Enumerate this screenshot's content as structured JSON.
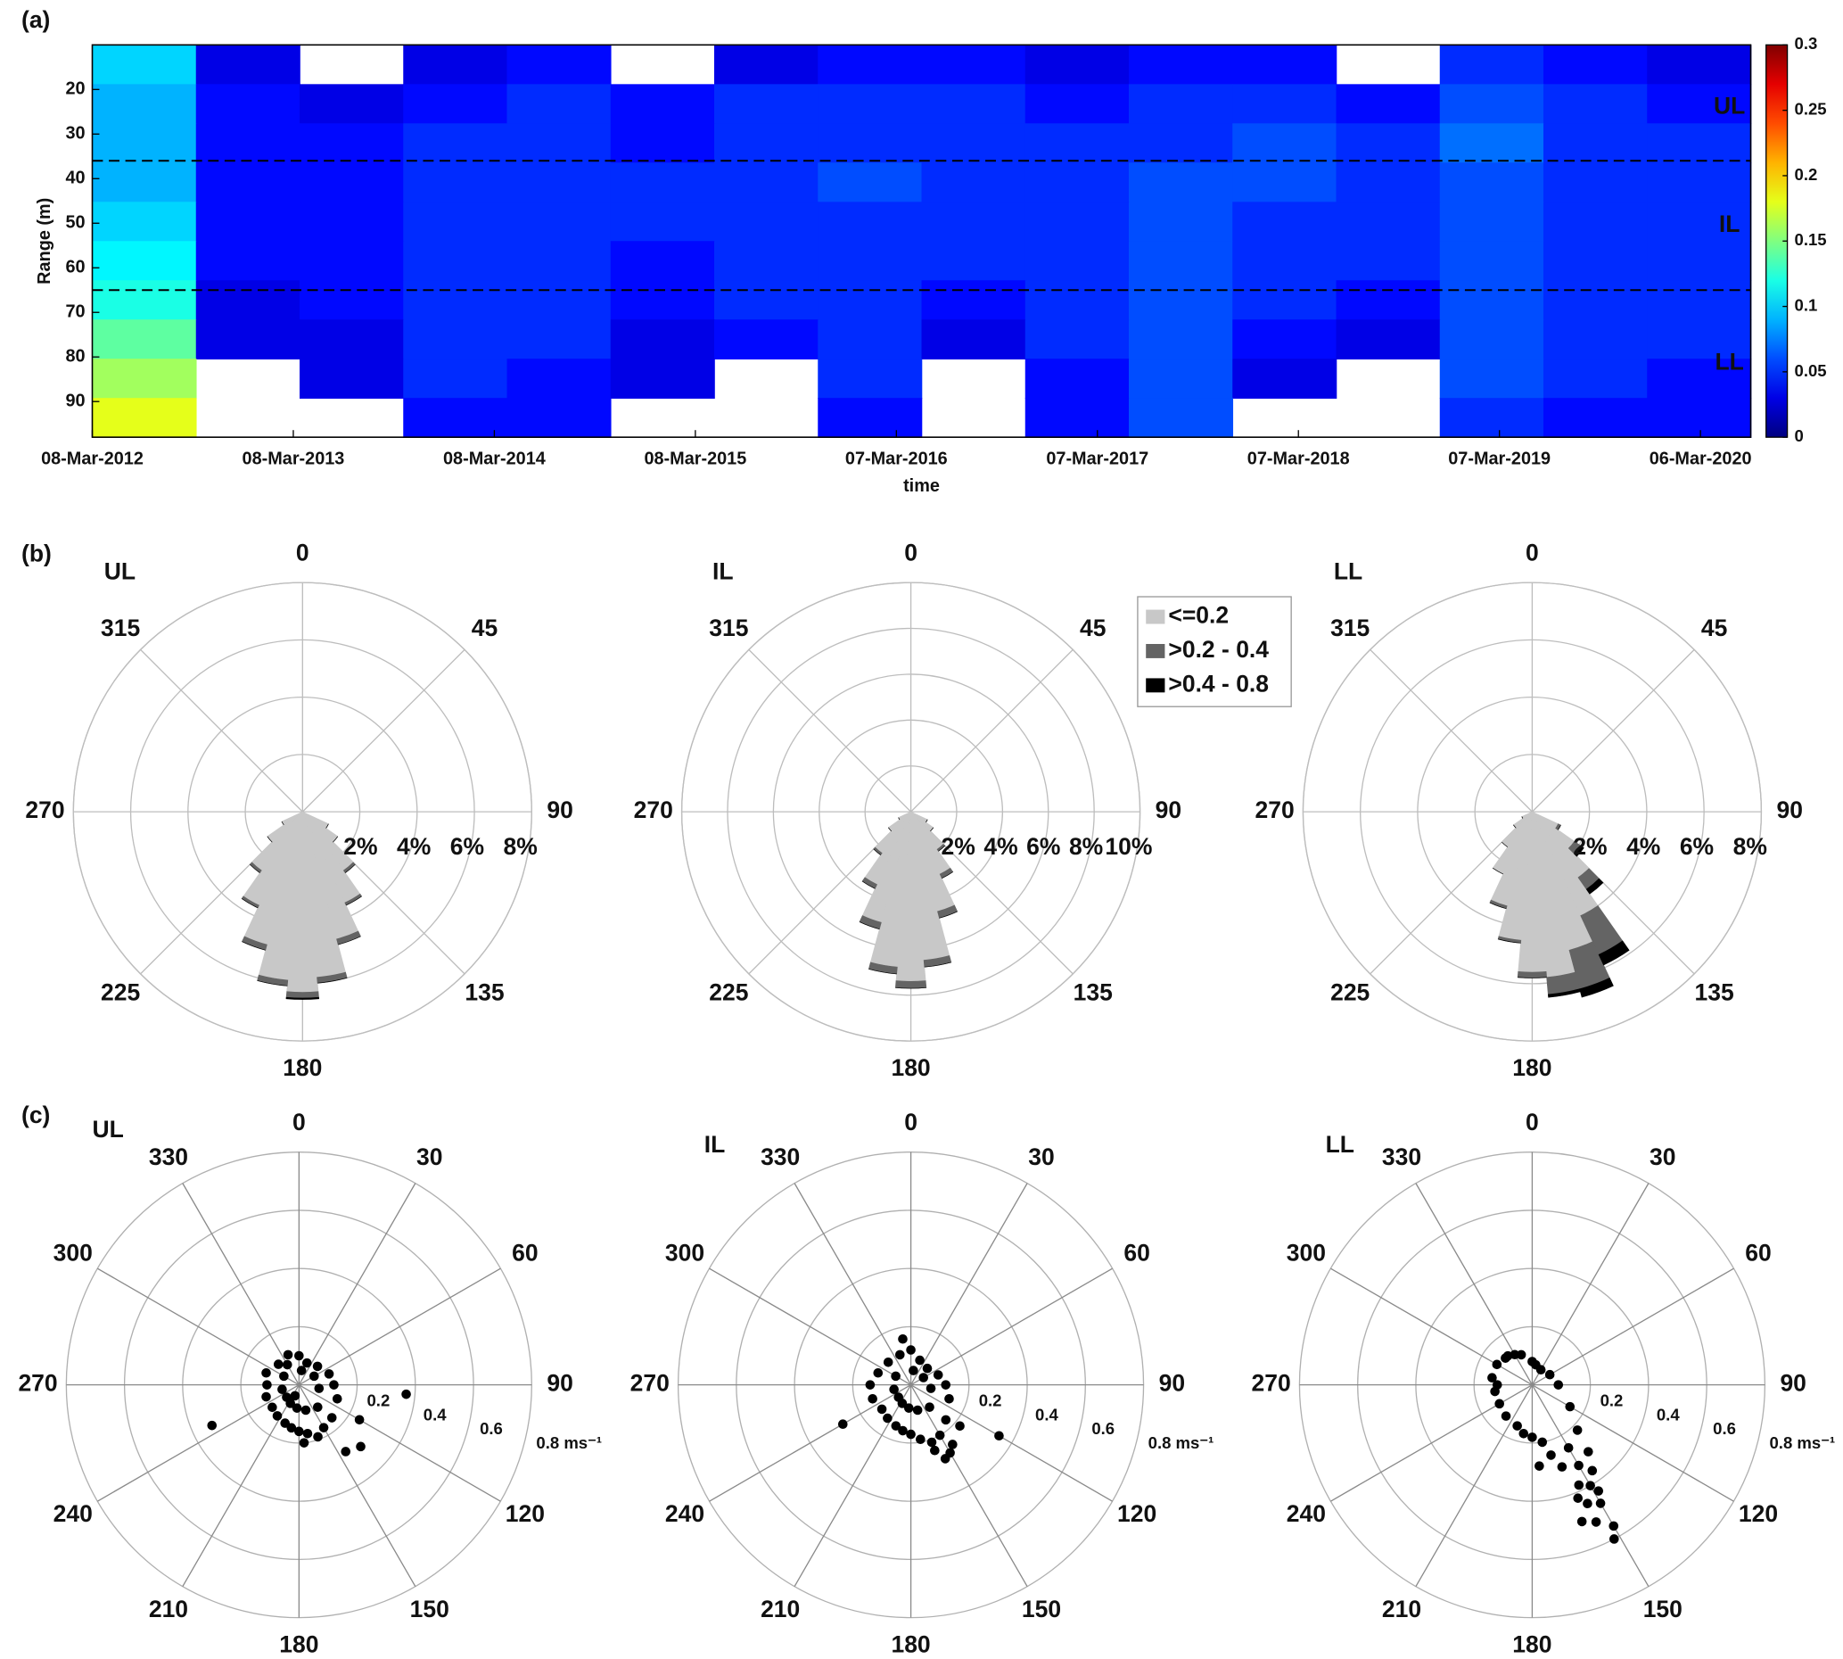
{
  "chart_data": [
    {
      "type": "heatmap",
      "panel": "(a)",
      "ylabel": "Range (m)",
      "xlabel": "time",
      "xlim": [
        2012.18,
        2020.43
      ],
      "ylim": [
        10,
        98
      ],
      "y_reversed": true,
      "xticks": [
        {
          "value": 2012.18,
          "label": "08-Mar-2012"
        },
        {
          "value": 2013.18,
          "label": "08-Mar-2013"
        },
        {
          "value": 2014.18,
          "label": "08-Mar-2014"
        },
        {
          "value": 2015.18,
          "label": "08-Mar-2015"
        },
        {
          "value": 2016.18,
          "label": "07-Mar-2016"
        },
        {
          "value": 2017.18,
          "label": "07-Mar-2017"
        },
        {
          "value": 2018.18,
          "label": "07-Mar-2018"
        },
        {
          "value": 2019.18,
          "label": "07-Mar-2019"
        },
        {
          "value": 2020.18,
          "label": "06-Mar-2020"
        }
      ],
      "yticks": [
        20,
        30,
        40,
        50,
        60,
        70,
        80,
        90
      ],
      "colormap": "jet",
      "clim": [
        0,
        0.3
      ],
      "cticks": [
        0,
        0.05,
        0.1,
        0.15,
        0.2,
        0.25,
        0.3
      ],
      "boundaries": [
        36,
        65
      ],
      "layer_labels": [
        "UL",
        "IL",
        "LL"
      ],
      "values": [
        [
          0.1,
          0.03,
          null,
          0.03,
          0.04,
          null,
          0.03,
          0.04,
          0.04,
          0.03,
          0.04,
          0.04,
          null,
          0.05,
          0.04,
          0.03
        ],
        [
          0.09,
          0.04,
          0.03,
          0.04,
          0.05,
          0.04,
          0.05,
          0.05,
          0.05,
          0.04,
          0.05,
          0.05,
          0.04,
          0.06,
          0.05,
          0.04
        ],
        [
          0.09,
          0.04,
          0.04,
          0.05,
          0.05,
          0.04,
          0.05,
          0.05,
          0.05,
          0.05,
          0.05,
          0.06,
          0.05,
          0.07,
          0.05,
          0.05
        ],
        [
          0.09,
          0.04,
          0.04,
          0.05,
          0.05,
          0.05,
          0.05,
          0.06,
          0.05,
          0.05,
          0.06,
          0.06,
          0.05,
          0.06,
          0.05,
          0.05
        ],
        [
          0.1,
          0.04,
          0.04,
          0.05,
          0.05,
          0.05,
          0.05,
          0.05,
          0.05,
          0.05,
          0.06,
          0.05,
          0.05,
          0.06,
          0.05,
          0.05
        ],
        [
          0.11,
          0.04,
          0.04,
          0.05,
          0.05,
          0.04,
          0.05,
          0.05,
          0.05,
          0.05,
          0.06,
          0.05,
          0.05,
          0.06,
          0.05,
          0.05
        ],
        [
          0.12,
          0.03,
          0.04,
          0.05,
          0.05,
          0.04,
          0.05,
          0.05,
          0.04,
          0.05,
          0.06,
          0.05,
          0.04,
          0.06,
          0.05,
          0.05
        ],
        [
          0.14,
          0.03,
          0.03,
          0.05,
          0.05,
          0.03,
          0.04,
          0.05,
          0.03,
          0.05,
          0.06,
          0.04,
          0.03,
          0.06,
          0.05,
          0.05
        ],
        [
          0.16,
          null,
          0.03,
          0.05,
          0.04,
          0.03,
          null,
          0.05,
          null,
          0.04,
          0.06,
          0.03,
          null,
          0.06,
          0.05,
          0.04
        ],
        [
          0.18,
          null,
          null,
          0.04,
          0.04,
          null,
          null,
          0.04,
          null,
          0.04,
          0.06,
          null,
          null,
          0.05,
          0.04,
          0.04
        ]
      ]
    },
    {
      "type": "rose",
      "panel": "(b)",
      "title": "UL",
      "rlim": [
        0,
        8
      ],
      "rticks": [
        {
          "value": 2,
          "label": "2%"
        },
        {
          "value": 4,
          "label": "4%"
        },
        {
          "value": 6,
          "label": "6%"
        },
        {
          "value": 8,
          "label": "8%"
        }
      ],
      "theta_ticks": [
        0,
        45,
        90,
        135,
        180,
        225,
        270,
        315
      ],
      "x": [
        120,
        130,
        140,
        150,
        160,
        170,
        180,
        190,
        200,
        210,
        220,
        230,
        240
      ],
      "series": [
        {
          "color": "#c8c8c8",
          "values": [
            1.0,
            1.5,
            2.5,
            3.5,
            4.6,
            5.8,
            6.3,
            5.9,
            4.8,
            3.6,
            2.5,
            1.5,
            0.8
          ]
        },
        {
          "color": "#646464",
          "values": [
            0,
            0,
            0.1,
            0.1,
            0.2,
            0.2,
            0.2,
            0.2,
            0.2,
            0.1,
            0.1,
            0,
            0
          ]
        },
        {
          "color": "#000000",
          "values": [
            0,
            0,
            0,
            0,
            0,
            0,
            0.05,
            0,
            0,
            0,
            0,
            0,
            0
          ]
        }
      ]
    },
    {
      "type": "rose",
      "title": "IL",
      "rlim": [
        0,
        10
      ],
      "rticks": [
        {
          "value": 2,
          "label": "2%"
        },
        {
          "value": 4,
          "label": "4%"
        },
        {
          "value": 6,
          "label": "6%"
        },
        {
          "value": 8,
          "label": "8%"
        },
        {
          "value": 10,
          "label": "10%"
        }
      ],
      "theta_ticks": [
        0,
        45,
        90,
        135,
        180,
        225,
        270,
        315
      ],
      "x": [
        120,
        130,
        140,
        150,
        160,
        170,
        180,
        190,
        200,
        210,
        220,
        230,
        240
      ],
      "legend": "northeast",
      "series": [
        {
          "name": "<=0.2",
          "color": "#c8c8c8",
          "values": [
            0.8,
            1.2,
            2.0,
            3.0,
            4.5,
            6.5,
            7.4,
            6.8,
            5.0,
            3.5,
            2.2,
            1.2,
            0.6
          ]
        },
        {
          "name": ">0.2 - 0.4",
          "color": "#646464",
          "values": [
            0,
            0,
            0.1,
            0.2,
            0.3,
            0.3,
            0.3,
            0.3,
            0.3,
            0.2,
            0.1,
            0,
            0
          ]
        },
        {
          "name": ">0.4 - 0.8",
          "color": "#000000",
          "values": [
            0,
            0,
            0,
            0,
            0,
            0,
            0,
            0,
            0,
            0,
            0,
            0,
            0
          ]
        }
      ]
    },
    {
      "type": "rose",
      "title": "LL",
      "rlim": [
        0,
        8
      ],
      "rticks": [
        {
          "value": 2,
          "label": "2%"
        },
        {
          "value": 4,
          "label": "4%"
        },
        {
          "value": 6,
          "label": "6%"
        },
        {
          "value": 8,
          "label": "8%"
        }
      ],
      "theta_ticks": [
        0,
        45,
        90,
        135,
        180,
        225,
        270,
        315
      ],
      "x": [
        120,
        130,
        140,
        150,
        160,
        170,
        180,
        190,
        200,
        210,
        220,
        230,
        240
      ],
      "series": [
        {
          "color": "#c8c8c8",
          "values": [
            1.0,
            1.8,
            2.8,
            4.0,
            5.0,
            5.8,
            5.6,
            4.5,
            3.4,
            2.4,
            1.5,
            0.8,
            0.4
          ]
        },
        {
          "color": "#646464",
          "values": [
            0.1,
            0.3,
            0.5,
            1.5,
            1.4,
            0.6,
            0.2,
            0.1,
            0.1,
            0,
            0,
            0,
            0
          ]
        },
        {
          "color": "#000000",
          "values": [
            0,
            0.1,
            0.2,
            0.4,
            0.3,
            0.1,
            0,
            0,
            0,
            0,
            0,
            0,
            0
          ]
        }
      ]
    },
    {
      "type": "polar-scatter",
      "panel": "(c)",
      "title": "UL",
      "rlim": [
        0,
        0.8
      ],
      "color": "#000000",
      "rticks": [
        0.2,
        0.4,
        0.6,
        {
          "value": 0.8,
          "label": "0.8 ms⁻¹"
        }
      ],
      "theta_ticks": [
        0,
        30,
        60,
        90,
        120,
        150,
        180,
        210,
        240,
        270,
        300,
        330
      ],
      "theta": [
        0,
        20,
        45,
        70,
        90,
        110,
        135,
        150,
        160,
        170,
        180,
        190,
        200,
        215,
        230,
        250,
        270,
        290,
        315,
        340,
        10,
        100,
        140,
        165,
        185,
        205,
        225,
        255,
        300,
        120,
        145,
        175,
        95,
        245,
        135,
        60,
        330,
        200
      ],
      "r": [
        0.1,
        0.08,
        0.09,
        0.11,
        0.12,
        0.14,
        0.16,
        0.17,
        0.19,
        0.17,
        0.16,
        0.15,
        0.14,
        0.13,
        0.12,
        0.12,
        0.11,
        0.12,
        0.1,
        0.11,
        0.05,
        0.07,
        0.1,
        0.09,
        0.08,
        0.07,
        0.06,
        0.06,
        0.06,
        0.24,
        0.28,
        0.2,
        0.37,
        0.33,
        0.3,
        0.06,
        0.08,
        0.04
      ]
    },
    {
      "type": "polar-scatter",
      "title": "IL",
      "rlim": [
        0,
        0.8
      ],
      "color": "#000000",
      "rticks": [
        0.2,
        0.4,
        0.6,
        {
          "value": 0.8,
          "label": "0.8 ms⁻¹"
        }
      ],
      "theta_ticks": [
        0,
        30,
        60,
        90,
        120,
        150,
        180,
        210,
        240,
        270,
        300,
        330
      ],
      "theta": [
        0,
        20,
        45,
        70,
        90,
        110,
        135,
        150,
        160,
        170,
        180,
        190,
        200,
        215,
        230,
        250,
        270,
        290,
        315,
        340,
        10,
        100,
        140,
        165,
        185,
        205,
        225,
        255,
        300,
        145,
        150,
        155,
        160,
        130,
        240,
        60,
        350,
        120
      ],
      "r": [
        0.12,
        0.09,
        0.08,
        0.1,
        0.12,
        0.14,
        0.17,
        0.2,
        0.21,
        0.19,
        0.17,
        0.16,
        0.15,
        0.14,
        0.13,
        0.14,
        0.14,
        0.12,
        0.11,
        0.11,
        0.05,
        0.07,
        0.1,
        0.09,
        0.08,
        0.07,
        0.06,
        0.06,
        0.06,
        0.25,
        0.27,
        0.28,
        0.24,
        0.22,
        0.27,
        0.05,
        0.16,
        0.35
      ]
    },
    {
      "type": "polar-scatter",
      "title": "LL",
      "rlim": [
        0,
        0.8
      ],
      "color": "#000000",
      "rticks": [
        0.2,
        0.4,
        0.6,
        {
          "value": 0.8,
          "label": "0.8 ms⁻¹"
        }
      ],
      "theta_ticks": [
        0,
        30,
        60,
        90,
        120,
        150,
        180,
        210,
        240,
        270,
        300,
        330
      ],
      "theta": [
        0,
        30,
        60,
        90,
        120,
        135,
        150,
        150,
        150,
        155,
        155,
        160,
        145,
        150,
        155,
        160,
        165,
        170,
        180,
        200,
        220,
        240,
        260,
        280,
        300,
        320,
        340,
        10,
        150,
        152,
        148,
        158,
        140,
        175,
        190,
        270,
        315,
        330
      ],
      "r": [
        0.08,
        0.06,
        0.07,
        0.09,
        0.15,
        0.22,
        0.25,
        0.32,
        0.4,
        0.45,
        0.52,
        0.5,
        0.36,
        0.56,
        0.38,
        0.3,
        0.25,
        0.2,
        0.18,
        0.15,
        0.14,
        0.13,
        0.13,
        0.14,
        0.14,
        0.13,
        0.11,
        0.07,
        0.47,
        0.6,
        0.43,
        0.42,
        0.3,
        0.28,
        0.17,
        0.12,
        0.13,
        0.12
      ]
    }
  ]
}
